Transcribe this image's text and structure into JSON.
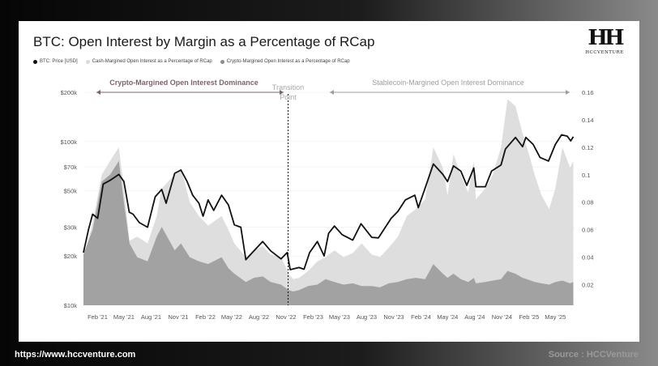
{
  "title": "BTC: Open Interest by Margin as a Percentage of RCap",
  "legend": [
    {
      "label": "BTC: Price [USD]",
      "color": "#111111"
    },
    {
      "label": "Cash-Margined Open Interest as a Percentage of RCap",
      "color": "#d9d9d9"
    },
    {
      "label": "Crypto-Margined Open Interest as a Percentage of RCap",
      "color": "#8c8c8c"
    }
  ],
  "logo": {
    "mark": "HH",
    "text": "HCCVENTURE"
  },
  "annotations": {
    "left_region": "Crypto-Margined Open Interest Dominance",
    "transition_line1": "Transition",
    "transition_line2": "Point",
    "right_region": "Stablecoin-Margined Open Interest Dominance"
  },
  "colors": {
    "price": "#111111",
    "cash": "#dedede",
    "crypto": "#a2a2a2",
    "left_annotation": "#7a6468",
    "right_annotation": "#9e9e9e"
  },
  "footer": {
    "url": "https://www.hccventure.com",
    "source": "Source : HCCVenture"
  },
  "chart_data": {
    "type": "area",
    "x_ticks": [
      "Feb '21",
      "May '21",
      "Aug '21",
      "Nov '21",
      "Feb '22",
      "May '22",
      "Aug '22",
      "Nov '22",
      "Feb '23",
      "May '23",
      "Aug '23",
      "Nov '23",
      "Feb '24",
      "May '24",
      "Aug '24",
      "Nov '24",
      "Feb '25",
      "May '25"
    ],
    "y_left_ticks": [
      "$10k",
      "$20k",
      "$30k",
      "$50k",
      "$70k",
      "$100k",
      "$200k"
    ],
    "y_left_values": [
      10000,
      20000,
      30000,
      50000,
      70000,
      100000,
      200000
    ],
    "y_left_scale": "log",
    "y_left_range": [
      10000,
      200000
    ],
    "y_right_ticks": [
      "0.02",
      "0.04",
      "0.06",
      "0.08",
      "0.1",
      "0.12",
      "0.14",
      "0.16"
    ],
    "y_right_range": [
      0.005,
      0.16
    ],
    "transition_date": "2022-11",
    "series": [
      {
        "name": "BTC: Price [USD]",
        "axis": "left",
        "points": [
          [
            "2020-12-15",
            21000
          ],
          [
            "2021-01-01",
            29000
          ],
          [
            "2021-01-15",
            36000
          ],
          [
            "2021-02-01",
            34000
          ],
          [
            "2021-02-20",
            55000
          ],
          [
            "2021-03-15",
            58000
          ],
          [
            "2021-04-14",
            63000
          ],
          [
            "2021-05-01",
            57000
          ],
          [
            "2021-05-19",
            37000
          ],
          [
            "2021-06-01",
            36000
          ],
          [
            "2021-06-22",
            32000
          ],
          [
            "2021-07-20",
            30000
          ],
          [
            "2021-08-15",
            46000
          ],
          [
            "2021-09-06",
            51000
          ],
          [
            "2021-09-21",
            42000
          ],
          [
            "2021-10-20",
            64000
          ],
          [
            "2021-11-10",
            67000
          ],
          [
            "2021-12-01",
            57000
          ],
          [
            "2021-12-20",
            47000
          ],
          [
            "2022-01-10",
            42000
          ],
          [
            "2022-01-24",
            35000
          ],
          [
            "2022-02-10",
            44000
          ],
          [
            "2022-03-01",
            38000
          ],
          [
            "2022-03-28",
            47000
          ],
          [
            "2022-04-20",
            41000
          ],
          [
            "2022-05-10",
            31000
          ],
          [
            "2022-06-01",
            30000
          ],
          [
            "2022-06-18",
            19000
          ],
          [
            "2022-07-10",
            21000
          ],
          [
            "2022-08-14",
            24500
          ],
          [
            "2022-09-10",
            21500
          ],
          [
            "2022-10-15",
            19200
          ],
          [
            "2022-11-05",
            21000
          ],
          [
            "2022-11-15",
            16500
          ],
          [
            "2022-12-15",
            17000
          ],
          [
            "2023-01-01",
            16600
          ],
          [
            "2023-01-20",
            21000
          ],
          [
            "2023-02-15",
            24500
          ],
          [
            "2023-03-10",
            20000
          ],
          [
            "2023-03-25",
            27500
          ],
          [
            "2023-04-14",
            30500
          ],
          [
            "2023-05-10",
            27000
          ],
          [
            "2023-06-15",
            25000
          ],
          [
            "2023-07-13",
            31500
          ],
          [
            "2023-08-18",
            26000
          ],
          [
            "2023-09-10",
            25800
          ],
          [
            "2023-10-23",
            34000
          ],
          [
            "2023-11-15",
            37500
          ],
          [
            "2023-12-10",
            44000
          ],
          [
            "2024-01-11",
            47000
          ],
          [
            "2024-01-23",
            39500
          ],
          [
            "2024-02-15",
            52000
          ],
          [
            "2024-03-14",
            73000
          ],
          [
            "2024-04-15",
            63000
          ],
          [
            "2024-05-01",
            57000
          ],
          [
            "2024-05-21",
            71000
          ],
          [
            "2024-06-15",
            66000
          ],
          [
            "2024-07-05",
            54000
          ],
          [
            "2024-07-29",
            69000
          ],
          [
            "2024-08-05",
            53000
          ],
          [
            "2024-09-06",
            53000
          ],
          [
            "2024-09-27",
            66000
          ],
          [
            "2024-10-29",
            72000
          ],
          [
            "2024-11-13",
            90000
          ],
          [
            "2024-12-17",
            106000
          ],
          [
            "2025-01-10",
            93000
          ],
          [
            "2025-01-21",
            106000
          ],
          [
            "2025-02-15",
            96000
          ],
          [
            "2025-03-10",
            80000
          ],
          [
            "2025-04-08",
            76000
          ],
          [
            "2025-05-01",
            96000
          ],
          [
            "2025-05-22",
            110000
          ],
          [
            "2025-06-10",
            108000
          ],
          [
            "2025-06-22",
            101000
          ],
          [
            "2025-07-01",
            107000
          ]
        ]
      },
      {
        "name": "Cash-Margined Open Interest as a Percentage of RCap",
        "axis": "right",
        "points": [
          [
            "2020-12-15",
            0.04
          ],
          [
            "2021-01-15",
            0.065
          ],
          [
            "2021-02-15",
            0.1
          ],
          [
            "2021-03-15",
            0.11
          ],
          [
            "2021-04-14",
            0.12
          ],
          [
            "2021-05-01",
            0.09
          ],
          [
            "2021-05-20",
            0.052
          ],
          [
            "2021-06-15",
            0.055
          ],
          [
            "2021-07-20",
            0.05
          ],
          [
            "2021-08-20",
            0.07
          ],
          [
            "2021-09-06",
            0.09
          ],
          [
            "2021-10-20",
            0.1
          ],
          [
            "2021-11-10",
            0.105
          ],
          [
            "2021-12-10",
            0.08
          ],
          [
            "2022-01-10",
            0.07
          ],
          [
            "2022-02-10",
            0.063
          ],
          [
            "2022-03-28",
            0.07
          ],
          [
            "2022-04-20",
            0.06
          ],
          [
            "2022-05-10",
            0.05
          ],
          [
            "2022-06-18",
            0.04
          ],
          [
            "2022-07-15",
            0.045
          ],
          [
            "2022-08-14",
            0.048
          ],
          [
            "2022-09-10",
            0.042
          ],
          [
            "2022-10-15",
            0.04
          ],
          [
            "2022-11-10",
            0.028
          ],
          [
            "2022-11-25",
            0.024
          ],
          [
            "2022-12-15",
            0.025
          ],
          [
            "2023-01-15",
            0.03
          ],
          [
            "2023-02-15",
            0.037
          ],
          [
            "2023-03-15",
            0.04
          ],
          [
            "2023-04-14",
            0.045
          ],
          [
            "2023-05-15",
            0.04
          ],
          [
            "2023-06-15",
            0.043
          ],
          [
            "2023-07-15",
            0.05
          ],
          [
            "2023-08-18",
            0.042
          ],
          [
            "2023-09-15",
            0.04
          ],
          [
            "2023-10-15",
            0.047
          ],
          [
            "2023-11-15",
            0.055
          ],
          [
            "2023-12-15",
            0.07
          ],
          [
            "2024-01-15",
            0.075
          ],
          [
            "2024-02-15",
            0.082
          ],
          [
            "2024-03-14",
            0.12
          ],
          [
            "2024-04-15",
            0.105
          ],
          [
            "2024-05-01",
            0.085
          ],
          [
            "2024-05-21",
            0.115
          ],
          [
            "2024-06-15",
            0.1
          ],
          [
            "2024-07-10",
            0.087
          ],
          [
            "2024-07-29",
            0.11
          ],
          [
            "2024-08-05",
            0.082
          ],
          [
            "2024-09-06",
            0.09
          ],
          [
            "2024-10-01",
            0.1
          ],
          [
            "2024-10-29",
            0.12
          ],
          [
            "2024-11-20",
            0.155
          ],
          [
            "2024-12-17",
            0.15
          ],
          [
            "2025-01-10",
            0.13
          ],
          [
            "2025-01-25",
            0.12
          ],
          [
            "2025-02-20",
            0.1
          ],
          [
            "2025-03-15",
            0.085
          ],
          [
            "2025-04-10",
            0.075
          ],
          [
            "2025-05-01",
            0.09
          ],
          [
            "2025-05-25",
            0.12
          ],
          [
            "2025-06-20",
            0.105
          ],
          [
            "2025-07-01",
            0.11
          ]
        ]
      },
      {
        "name": "Crypto-Margined Open Interest as a Percentage of RCap",
        "axis": "right",
        "points": [
          [
            "2020-12-15",
            0.042
          ],
          [
            "2021-01-15",
            0.06
          ],
          [
            "2021-02-15",
            0.095
          ],
          [
            "2021-03-15",
            0.1
          ],
          [
            "2021-04-14",
            0.11
          ],
          [
            "2021-05-01",
            0.08
          ],
          [
            "2021-05-20",
            0.05
          ],
          [
            "2021-06-15",
            0.04
          ],
          [
            "2021-07-20",
            0.037
          ],
          [
            "2021-08-20",
            0.055
          ],
          [
            "2021-09-06",
            0.062
          ],
          [
            "2021-10-20",
            0.045
          ],
          [
            "2021-11-10",
            0.05
          ],
          [
            "2021-12-10",
            0.04
          ],
          [
            "2022-01-10",
            0.037
          ],
          [
            "2022-02-10",
            0.035
          ],
          [
            "2022-03-28",
            0.04
          ],
          [
            "2022-04-20",
            0.032
          ],
          [
            "2022-05-10",
            0.028
          ],
          [
            "2022-06-18",
            0.022
          ],
          [
            "2022-07-15",
            0.025
          ],
          [
            "2022-08-14",
            0.026
          ],
          [
            "2022-09-10",
            0.022
          ],
          [
            "2022-10-15",
            0.02
          ],
          [
            "2022-11-10",
            0.016
          ],
          [
            "2022-11-25",
            0.015
          ],
          [
            "2022-12-15",
            0.016
          ],
          [
            "2023-01-15",
            0.019
          ],
          [
            "2023-02-15",
            0.02
          ],
          [
            "2023-03-15",
            0.024
          ],
          [
            "2023-04-14",
            0.022
          ],
          [
            "2023-05-15",
            0.02
          ],
          [
            "2023-06-15",
            0.021
          ],
          [
            "2023-07-15",
            0.019
          ],
          [
            "2023-08-18",
            0.019
          ],
          [
            "2023-09-15",
            0.018
          ],
          [
            "2023-10-15",
            0.021
          ],
          [
            "2023-11-15",
            0.022
          ],
          [
            "2023-12-15",
            0.024
          ],
          [
            "2024-01-15",
            0.025
          ],
          [
            "2024-02-15",
            0.024
          ],
          [
            "2024-03-14",
            0.035
          ],
          [
            "2024-04-15",
            0.028
          ],
          [
            "2024-05-01",
            0.025
          ],
          [
            "2024-05-21",
            0.028
          ],
          [
            "2024-06-15",
            0.024
          ],
          [
            "2024-07-10",
            0.022
          ],
          [
            "2024-07-29",
            0.025
          ],
          [
            "2024-08-05",
            0.021
          ],
          [
            "2024-09-06",
            0.022
          ],
          [
            "2024-10-01",
            0.023
          ],
          [
            "2024-10-29",
            0.024
          ],
          [
            "2024-11-20",
            0.03
          ],
          [
            "2024-12-17",
            0.028
          ],
          [
            "2025-01-10",
            0.025
          ],
          [
            "2025-01-25",
            0.024
          ],
          [
            "2025-02-20",
            0.022
          ],
          [
            "2025-03-15",
            0.021
          ],
          [
            "2025-04-10",
            0.02
          ],
          [
            "2025-05-01",
            0.022
          ],
          [
            "2025-05-25",
            0.023
          ],
          [
            "2025-06-20",
            0.021
          ],
          [
            "2025-07-01",
            0.022
          ]
        ]
      }
    ]
  }
}
